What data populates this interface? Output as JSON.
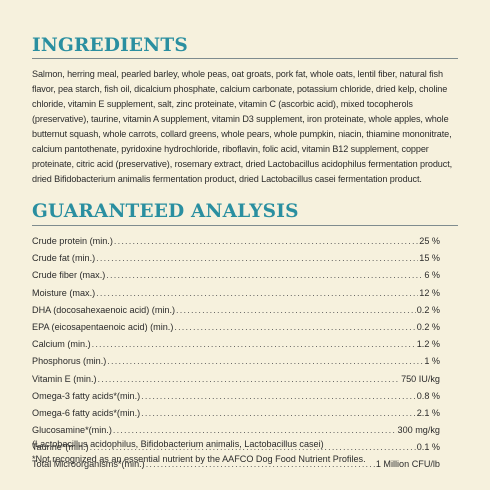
{
  "ingredients": {
    "title": "INGREDIENTS",
    "text": "Salmon, herring meal, pearled barley, whole peas, oat groats, pork fat, whole oats, lentil fiber, natural fish flavor, pea starch, fish oil, dicalcium phosphate, calcium carbonate, potassium chloride, dried kelp, choline chloride, vitamin E supplement, salt, zinc proteinate, vitamin C (ascorbic acid), mixed tocopherols (preservative), taurine, vitamin A supplement, vitamin D3 supplement, iron proteinate, whole apples, whole butternut squash, whole carrots, collard greens, whole pears, whole pumpkin, niacin, thiamine mononitrate, calcium pantothenate, pyridoxine hydrochloride, riboflavin, folic acid, vitamin B12 supplement, copper proteinate, citric acid (preservative), rosemary extract, dried Lactobacillus acidophilus fermentation product, dried Bifidobacterium animalis fermentation product, dried Lactobacillus casei fermentation product."
  },
  "analysis": {
    "title": "GUARANTEED ANALYSIS",
    "rows": [
      {
        "label": "Crude protein (min.)",
        "value": "25 %"
      },
      {
        "label": "Crude fat (min.)",
        "value": "15 %"
      },
      {
        "label": "Crude fiber (max.)",
        "value": "6 %"
      },
      {
        "label": "Moisture (max.)",
        "value": "12 %"
      },
      {
        "label": "DHA (docosahexaenoic acid) (min.)",
        "value": "0.2 %"
      },
      {
        "label": "EPA (eicosapentaenoic acid) (min.)",
        "value": "0.2 %"
      },
      {
        "label": "Calcium (min.)",
        "value": "1.2 %"
      },
      {
        "label": "Phosphorus (min.)",
        "value": "1 %"
      },
      {
        "label": "Vitamin E (min.)",
        "value": "750 IU/kg"
      },
      {
        "label": "Omega-3 fatty acids*(min.)",
        "value": "0.8 %"
      },
      {
        "label": "Omega-6 fatty acids*(min.)",
        "value": "2.1 %"
      },
      {
        "label": "Glucosamine*(min.)",
        "value": "300 mg/kg"
      },
      {
        "label": "Taurine*(min.)",
        "value": "0.1 %"
      },
      {
        "label": "Total Microorganisms*(min.)",
        "value": "1 Million CFU/lb"
      }
    ],
    "microorganisms_note": "(Lactobacillus acidophilus, Bifidobacterium animalis, Lactobacillus casei)",
    "aafco_note": "*Not recognized as an essential nutrient by the AAFCO Dog Food Nutrient Profiles."
  },
  "colors": {
    "background": "#f6f1dd",
    "heading": "#2a8fa0",
    "text": "#2b2b2b"
  }
}
